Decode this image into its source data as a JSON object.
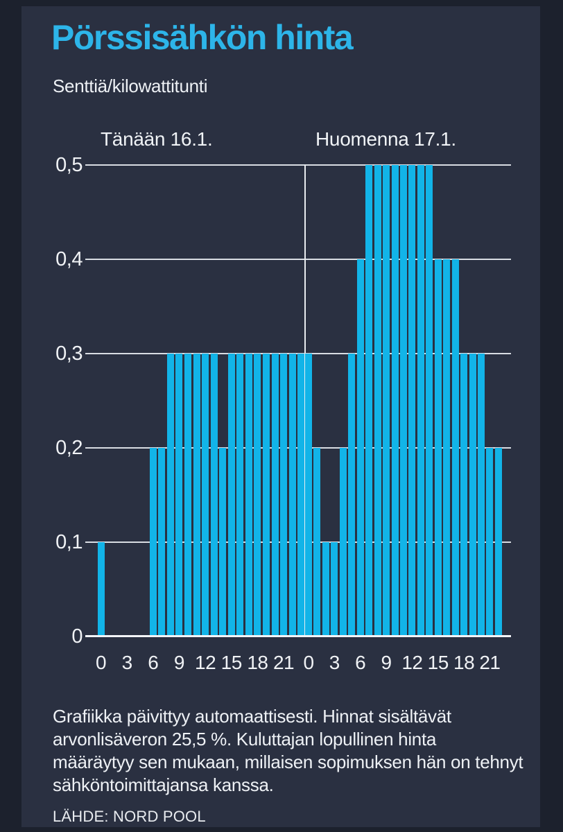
{
  "title": "Pörssisähkön hinta",
  "subtitle": "Senttiä/kilowattitunti",
  "colors": {
    "bar": "#12b4e8",
    "accent_title": "#2db5e9",
    "card_background": "#2a3041",
    "page_background": "#1c212d",
    "gridline": "#d9dde3",
    "text": "#eef1f5"
  },
  "footer": {
    "lines": [
      "Grafiikka päivittyy automaattisesti. Hinnat sisältävät",
      "arvonlisäveron 25,5 %. Kuluttajan lopullinen hinta",
      "määräytyy sen mukaan, millaisen sopimuksen hän on tehnyt",
      "sähköntoimittajansa kanssa."
    ],
    "source": "LÄHDE: NORD POOL"
  },
  "chart_data": {
    "type": "bar",
    "title": "Pörssisähkön hinta",
    "ylabel": "Senttiä/kilowattitunti",
    "ylim": [
      0,
      0.5
    ],
    "yticks": [
      0,
      0.1,
      0.2,
      0.3,
      0.4,
      0.5
    ],
    "ytick_labels": [
      "0",
      "0,1",
      "0,2",
      "0,3",
      "0,4",
      "0,5"
    ],
    "xtick_hours": [
      0,
      3,
      6,
      9,
      12,
      15,
      18,
      21
    ],
    "grid": "horizontal-only",
    "legend_position": "labels-above-chart",
    "series": [
      {
        "name": "Tänään 16.1.",
        "hours": [
          0,
          1,
          2,
          3,
          4,
          5,
          6,
          7,
          8,
          9,
          10,
          11,
          12,
          13,
          14,
          15,
          16,
          17,
          18,
          19,
          20,
          21,
          22,
          23
        ],
        "values": [
          0.1,
          0,
          0,
          0,
          0,
          0,
          0.2,
          0.2,
          0.3,
          0.3,
          0.3,
          0.3,
          0.3,
          0.3,
          0.2,
          0.3,
          0.3,
          0.3,
          0.3,
          0.3,
          0.3,
          0.3,
          0.3,
          0.3
        ]
      },
      {
        "name": "Huomenna 17.1.",
        "hours": [
          0,
          1,
          2,
          3,
          4,
          5,
          6,
          7,
          8,
          9,
          10,
          11,
          12,
          13,
          14,
          15,
          16,
          17,
          18,
          19,
          20,
          21,
          22,
          23
        ],
        "values": [
          0.3,
          0.2,
          0.1,
          0.1,
          0.2,
          0.3,
          0.4,
          0.5,
          0.5,
          0.5,
          0.5,
          0.5,
          0.5,
          0.5,
          0.5,
          0.4,
          0.4,
          0.4,
          0.3,
          0.3,
          0.3,
          0.2,
          0.2,
          null
        ]
      }
    ]
  }
}
